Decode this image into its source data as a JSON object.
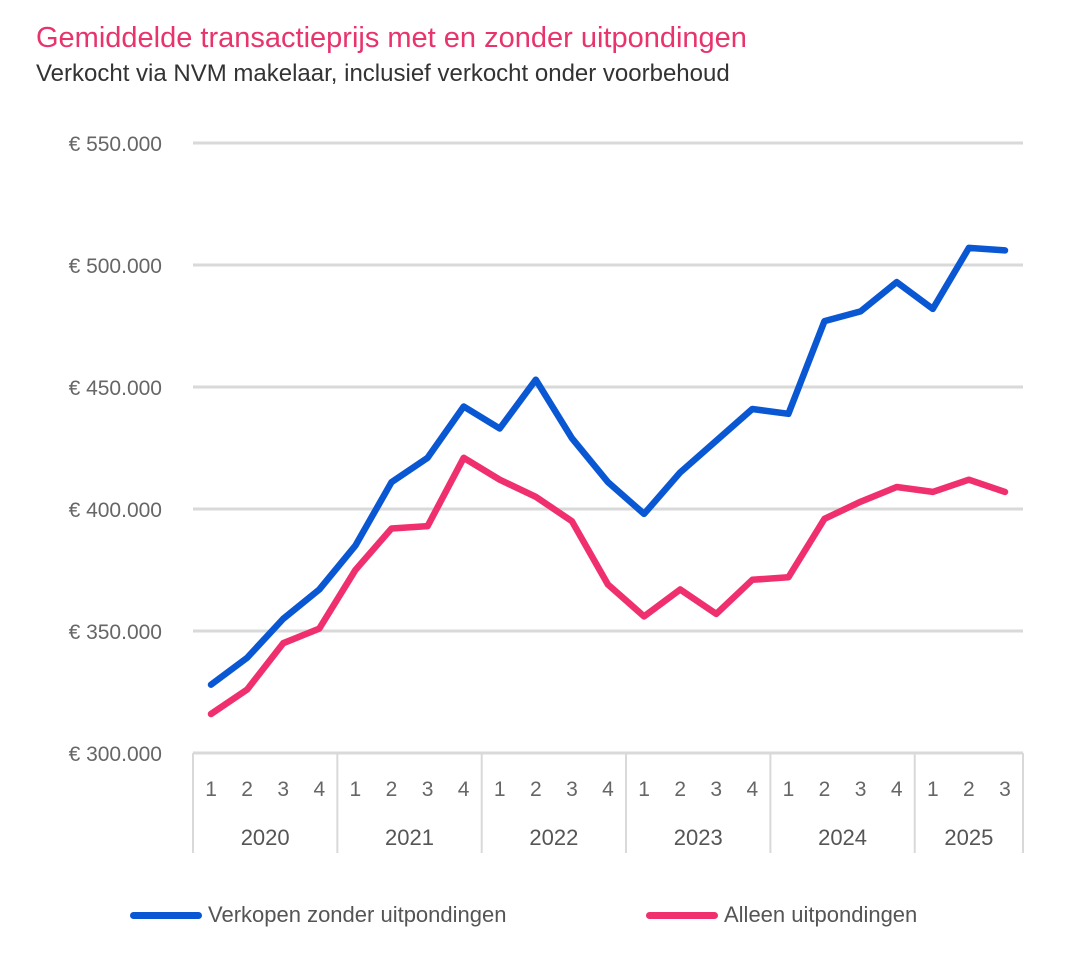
{
  "chart_data": {
    "type": "line",
    "title": "Gemiddelde transactieprijs met en zonder uitpondingen",
    "subtitle": "Verkocht via NVM makelaar, inclusief verkocht onder voorbehoud",
    "ylim": [
      300000,
      550000
    ],
    "yticks": [
      300000,
      350000,
      400000,
      450000,
      500000,
      550000
    ],
    "ytick_labels": [
      "€ 300.000",
      "€ 350.000",
      "€ 400.000",
      "€ 450.000",
      "€ 500.000",
      "€ 550.000"
    ],
    "categories": [
      "1",
      "2",
      "3",
      "4",
      "1",
      "2",
      "3",
      "4",
      "1",
      "2",
      "3",
      "4",
      "1",
      "2",
      "3",
      "4",
      "1",
      "2",
      "3",
      "4",
      "1",
      "2",
      "3"
    ],
    "year_groups": [
      {
        "label": "2020",
        "count": 4
      },
      {
        "label": "2021",
        "count": 4
      },
      {
        "label": "2022",
        "count": 4
      },
      {
        "label": "2023",
        "count": 4
      },
      {
        "label": "2024",
        "count": 4
      },
      {
        "label": "2025",
        "count": 3
      }
    ],
    "series": [
      {
        "name": "Verkopen zonder uitpondingen",
        "color": "#0a57d4",
        "values": [
          328000,
          339000,
          355000,
          367000,
          385000,
          411000,
          421000,
          442000,
          433000,
          453000,
          429000,
          411000,
          398000,
          415000,
          428000,
          441000,
          439000,
          477000,
          481000,
          493000,
          482000,
          507000,
          506000
        ]
      },
      {
        "name": "Alleen uitpondingen",
        "color": "#f0306e",
        "values": [
          316000,
          326000,
          345000,
          351000,
          375000,
          392000,
          393000,
          421000,
          412000,
          405000,
          395000,
          369000,
          356000,
          367000,
          357000,
          371000,
          372000,
          396000,
          403000,
          409000,
          407000,
          412000,
          407000
        ]
      }
    ],
    "legend_position": "bottom"
  }
}
